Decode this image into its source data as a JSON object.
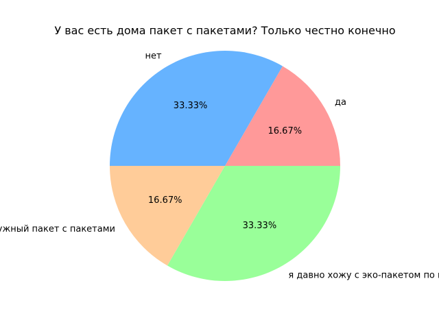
{
  "chart_data": {
    "type": "pie",
    "title": "У вас есть дома пакет с пакетами? Только честно конечно",
    "start_angle_deg": 0,
    "direction": "counterclockwise",
    "slices": [
      {
        "label": "да",
        "value": 16.67,
        "pct_label": "16.67%",
        "color": "#ff9999"
      },
      {
        "label": "нет",
        "value": 33.33,
        "pct_label": "33.33%",
        "color": "#66b3ff"
      },
      {
        "label": "конечно, нужный пакет с пакетами",
        "value": 16.67,
        "pct_label": "16.67%",
        "color": "#ffcc99"
      },
      {
        "label": "я давно хожу с эко-пакетом по магазинам",
        "value": 33.33,
        "pct_label": "33.33%",
        "color": "#99ff99"
      }
    ]
  }
}
